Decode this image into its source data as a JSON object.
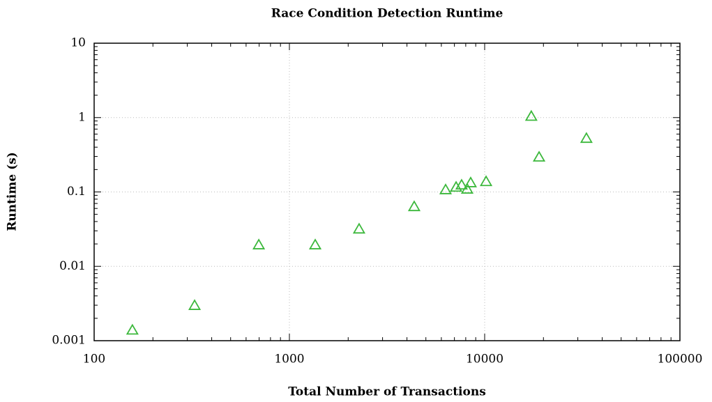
{
  "chart_data": {
    "type": "scatter",
    "title": "Race Condition Detection Runtime",
    "x_label": "Total Number of Transactions",
    "y_label": "Runtime (s)",
    "log_x": true,
    "log_y": true,
    "grid": true,
    "marker": "triangle",
    "series": [
      {
        "name": "Runtime",
        "color": "#3cb83c",
        "x": [
          157,
          327,
          697,
          1356,
          2275,
          4357,
          6310,
          7140,
          7620,
          8140,
          8480,
          10170,
          17330,
          19000,
          33200
        ],
        "values": [
          0.0014,
          0.003,
          0.0196,
          0.0196,
          0.032,
          0.064,
          0.108,
          0.117,
          0.125,
          0.11,
          0.134,
          0.139,
          1.05,
          0.297,
          0.53
        ]
      }
    ],
    "xlim": [
      100,
      100000
    ],
    "xticks": [
      100,
      1000,
      10000,
      100000
    ],
    "ylim": [
      0.001,
      10
    ],
    "yticks": [
      0.001,
      0.01,
      0.1,
      1,
      10
    ]
  }
}
